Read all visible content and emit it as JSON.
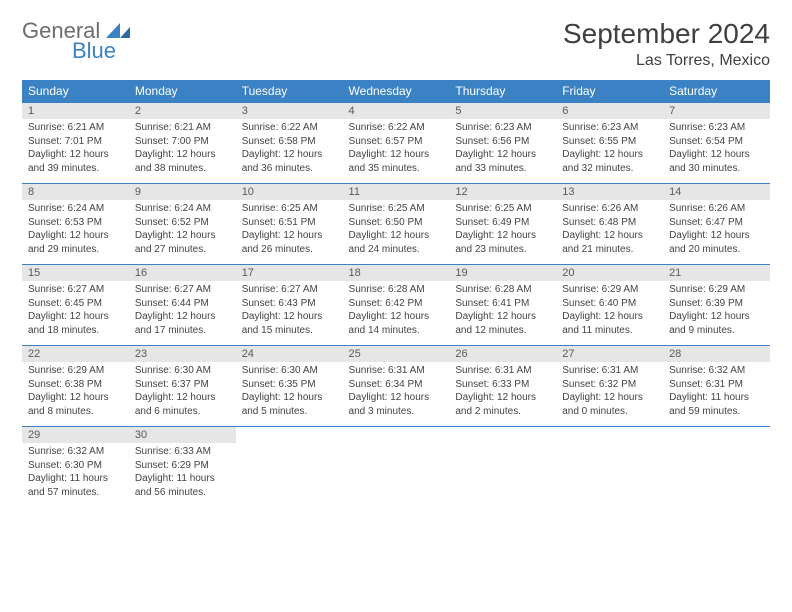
{
  "logo": {
    "word1": "General",
    "word2": "Blue"
  },
  "title": "September 2024",
  "location": "Las Torres, Mexico",
  "colors": {
    "accent": "#3b82c4",
    "daynum_bg": "#e6e6e6",
    "text": "#404040",
    "body_text": "#444444"
  },
  "day_headers": [
    "Sunday",
    "Monday",
    "Tuesday",
    "Wednesday",
    "Thursday",
    "Friday",
    "Saturday"
  ],
  "weeks": [
    [
      {
        "n": "1",
        "sr": "Sunrise: 6:21 AM",
        "ss": "Sunset: 7:01 PM",
        "d1": "Daylight: 12 hours",
        "d2": "and 39 minutes."
      },
      {
        "n": "2",
        "sr": "Sunrise: 6:21 AM",
        "ss": "Sunset: 7:00 PM",
        "d1": "Daylight: 12 hours",
        "d2": "and 38 minutes."
      },
      {
        "n": "3",
        "sr": "Sunrise: 6:22 AM",
        "ss": "Sunset: 6:58 PM",
        "d1": "Daylight: 12 hours",
        "d2": "and 36 minutes."
      },
      {
        "n": "4",
        "sr": "Sunrise: 6:22 AM",
        "ss": "Sunset: 6:57 PM",
        "d1": "Daylight: 12 hours",
        "d2": "and 35 minutes."
      },
      {
        "n": "5",
        "sr": "Sunrise: 6:23 AM",
        "ss": "Sunset: 6:56 PM",
        "d1": "Daylight: 12 hours",
        "d2": "and 33 minutes."
      },
      {
        "n": "6",
        "sr": "Sunrise: 6:23 AM",
        "ss": "Sunset: 6:55 PM",
        "d1": "Daylight: 12 hours",
        "d2": "and 32 minutes."
      },
      {
        "n": "7",
        "sr": "Sunrise: 6:23 AM",
        "ss": "Sunset: 6:54 PM",
        "d1": "Daylight: 12 hours",
        "d2": "and 30 minutes."
      }
    ],
    [
      {
        "n": "8",
        "sr": "Sunrise: 6:24 AM",
        "ss": "Sunset: 6:53 PM",
        "d1": "Daylight: 12 hours",
        "d2": "and 29 minutes."
      },
      {
        "n": "9",
        "sr": "Sunrise: 6:24 AM",
        "ss": "Sunset: 6:52 PM",
        "d1": "Daylight: 12 hours",
        "d2": "and 27 minutes."
      },
      {
        "n": "10",
        "sr": "Sunrise: 6:25 AM",
        "ss": "Sunset: 6:51 PM",
        "d1": "Daylight: 12 hours",
        "d2": "and 26 minutes."
      },
      {
        "n": "11",
        "sr": "Sunrise: 6:25 AM",
        "ss": "Sunset: 6:50 PM",
        "d1": "Daylight: 12 hours",
        "d2": "and 24 minutes."
      },
      {
        "n": "12",
        "sr": "Sunrise: 6:25 AM",
        "ss": "Sunset: 6:49 PM",
        "d1": "Daylight: 12 hours",
        "d2": "and 23 minutes."
      },
      {
        "n": "13",
        "sr": "Sunrise: 6:26 AM",
        "ss": "Sunset: 6:48 PM",
        "d1": "Daylight: 12 hours",
        "d2": "and 21 minutes."
      },
      {
        "n": "14",
        "sr": "Sunrise: 6:26 AM",
        "ss": "Sunset: 6:47 PM",
        "d1": "Daylight: 12 hours",
        "d2": "and 20 minutes."
      }
    ],
    [
      {
        "n": "15",
        "sr": "Sunrise: 6:27 AM",
        "ss": "Sunset: 6:45 PM",
        "d1": "Daylight: 12 hours",
        "d2": "and 18 minutes."
      },
      {
        "n": "16",
        "sr": "Sunrise: 6:27 AM",
        "ss": "Sunset: 6:44 PM",
        "d1": "Daylight: 12 hours",
        "d2": "and 17 minutes."
      },
      {
        "n": "17",
        "sr": "Sunrise: 6:27 AM",
        "ss": "Sunset: 6:43 PM",
        "d1": "Daylight: 12 hours",
        "d2": "and 15 minutes."
      },
      {
        "n": "18",
        "sr": "Sunrise: 6:28 AM",
        "ss": "Sunset: 6:42 PM",
        "d1": "Daylight: 12 hours",
        "d2": "and 14 minutes."
      },
      {
        "n": "19",
        "sr": "Sunrise: 6:28 AM",
        "ss": "Sunset: 6:41 PM",
        "d1": "Daylight: 12 hours",
        "d2": "and 12 minutes."
      },
      {
        "n": "20",
        "sr": "Sunrise: 6:29 AM",
        "ss": "Sunset: 6:40 PM",
        "d1": "Daylight: 12 hours",
        "d2": "and 11 minutes."
      },
      {
        "n": "21",
        "sr": "Sunrise: 6:29 AM",
        "ss": "Sunset: 6:39 PM",
        "d1": "Daylight: 12 hours",
        "d2": "and 9 minutes."
      }
    ],
    [
      {
        "n": "22",
        "sr": "Sunrise: 6:29 AM",
        "ss": "Sunset: 6:38 PM",
        "d1": "Daylight: 12 hours",
        "d2": "and 8 minutes."
      },
      {
        "n": "23",
        "sr": "Sunrise: 6:30 AM",
        "ss": "Sunset: 6:37 PM",
        "d1": "Daylight: 12 hours",
        "d2": "and 6 minutes."
      },
      {
        "n": "24",
        "sr": "Sunrise: 6:30 AM",
        "ss": "Sunset: 6:35 PM",
        "d1": "Daylight: 12 hours",
        "d2": "and 5 minutes."
      },
      {
        "n": "25",
        "sr": "Sunrise: 6:31 AM",
        "ss": "Sunset: 6:34 PM",
        "d1": "Daylight: 12 hours",
        "d2": "and 3 minutes."
      },
      {
        "n": "26",
        "sr": "Sunrise: 6:31 AM",
        "ss": "Sunset: 6:33 PM",
        "d1": "Daylight: 12 hours",
        "d2": "and 2 minutes."
      },
      {
        "n": "27",
        "sr": "Sunrise: 6:31 AM",
        "ss": "Sunset: 6:32 PM",
        "d1": "Daylight: 12 hours",
        "d2": "and 0 minutes."
      },
      {
        "n": "28",
        "sr": "Sunrise: 6:32 AM",
        "ss": "Sunset: 6:31 PM",
        "d1": "Daylight: 11 hours",
        "d2": "and 59 minutes."
      }
    ],
    [
      {
        "n": "29",
        "sr": "Sunrise: 6:32 AM",
        "ss": "Sunset: 6:30 PM",
        "d1": "Daylight: 11 hours",
        "d2": "and 57 minutes."
      },
      {
        "n": "30",
        "sr": "Sunrise: 6:33 AM",
        "ss": "Sunset: 6:29 PM",
        "d1": "Daylight: 11 hours",
        "d2": "and 56 minutes."
      },
      {
        "empty": true
      },
      {
        "empty": true
      },
      {
        "empty": true
      },
      {
        "empty": true
      },
      {
        "empty": true
      }
    ]
  ]
}
